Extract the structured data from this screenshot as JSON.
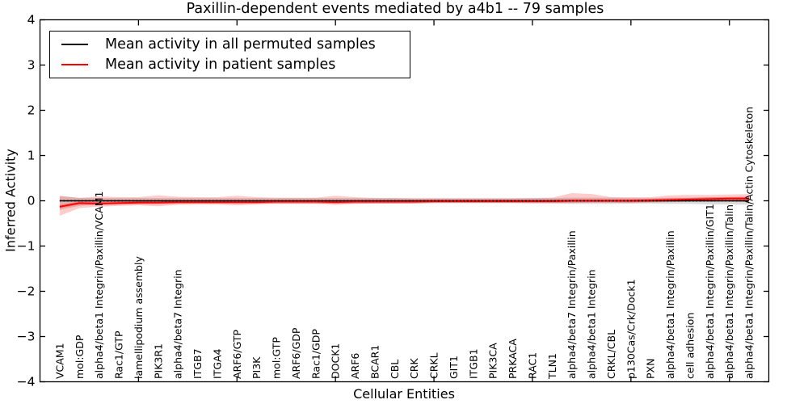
{
  "figure": {
    "title": "Paxillin-dependent events mediated by a4b1 -- 79 samples",
    "xlabel": "Cellular Entities",
    "ylabel": "Inferred Activity"
  },
  "legend": {
    "items": [
      {
        "label": "Mean activity in all permuted samples",
        "color": "#000000"
      },
      {
        "label": "Mean activity in patient samples",
        "color": "#ff0000"
      }
    ]
  },
  "colors": {
    "axis": "#000000",
    "permuted_line": "#000000",
    "patient_line": "#ff0000",
    "permuted_band": "rgba(0,0,0,0.14)",
    "patient_band_outer": "rgba(255,0,0,0.20)",
    "patient_band_inner": "rgba(255,0,0,0.28)"
  },
  "chart_data": {
    "type": "line",
    "title": "Paxillin-dependent events mediated by a4b1 -- 79 samples",
    "xlabel": "Cellular Entities",
    "ylabel": "Inferred Activity",
    "ylim": [
      -4,
      4
    ],
    "grid": false,
    "legend_position": "upper left",
    "y_tick_values": [
      4,
      3,
      2,
      1,
      0,
      -1,
      -2,
      -3,
      -4
    ],
    "y_tick_labels": [
      "4",
      "3",
      "2",
      "1",
      "0",
      "−1",
      "−2",
      "−3",
      "−4"
    ],
    "x_major_tick_positions": [
      5,
      10,
      15,
      20,
      25,
      30,
      35
    ],
    "categories": [
      "VCAM1",
      "mol:GDP",
      "alpha4/beta1 Integrin/Paxillin/VCAM1",
      "Rac1/GTP",
      "lamellipodium assembly",
      "PIK3R1",
      "alpha4/beta7 Integrin",
      "ITGB7",
      "ITGA4",
      "ARF6/GTP",
      "PI3K",
      "mol:GTP",
      "ARF6/GDP",
      "Rac1/GDP",
      "DOCK1",
      "ARF6",
      "BCAR1",
      "CBL",
      "CRK",
      "CRKL",
      "GIT1",
      "ITGB1",
      "PIK3CA",
      "PRKACA",
      "RAC1",
      "TLN1",
      "alpha4/beta7 Integrin/Paxillin",
      "alpha4/beta1 Integrin",
      "CRKL/CBL",
      "p130Cas/Crk/Dock1",
      "PXN",
      "alpha4/beta1 Integrin/Paxillin",
      "cell adhesion",
      "alpha4/beta1 Integrin/Paxillin/GIT1",
      "alpha4/beta1 Integrin/Paxillin/Talin",
      "alpha4/beta1 Integrin/Paxillin/Talin/Actin Cytoskeleton"
    ],
    "series": [
      {
        "name": "Mean activity in all permuted samples",
        "color": "#000000",
        "values": [
          0,
          0,
          0,
          0,
          0,
          0,
          0,
          0,
          0,
          0,
          0,
          0,
          0,
          0,
          0,
          0,
          0,
          0,
          0,
          0,
          0,
          0,
          0,
          0,
          0,
          0,
          0,
          0,
          0,
          0,
          0,
          0,
          0,
          0,
          0,
          0
        ]
      },
      {
        "name": "Mean activity in patient samples",
        "color": "#ff0000",
        "values": [
          -0.13,
          -0.05,
          -0.06,
          -0.05,
          -0.04,
          -0.04,
          -0.03,
          -0.03,
          -0.03,
          -0.03,
          -0.03,
          -0.02,
          -0.02,
          -0.02,
          -0.03,
          -0.02,
          -0.02,
          -0.02,
          -0.02,
          -0.01,
          -0.01,
          -0.01,
          -0.01,
          -0.01,
          -0.01,
          -0.01,
          0,
          0,
          0,
          0,
          0.01,
          0.02,
          0.03,
          0.04,
          0.05,
          0.05
        ]
      }
    ],
    "bands": [
      {
        "name": "permuted-band",
        "color": "rgba(0,0,0,0.14)",
        "upper": [
          0.1,
          0.07,
          0.06,
          0.06,
          0.06,
          0.06,
          0.06,
          0.06,
          0.06,
          0.06,
          0.06,
          0.06,
          0.06,
          0.06,
          0.06,
          0.06,
          0.06,
          0.06,
          0.05,
          0.05,
          0.05,
          0.05,
          0.05,
          0.05,
          0.06,
          0.06,
          0.07,
          0.07,
          0.07,
          0.06,
          0.06,
          0.07,
          0.07,
          0.08,
          0.08,
          0.09
        ],
        "lower": [
          -0.2,
          -0.11,
          -0.08,
          -0.07,
          -0.07,
          -0.07,
          -0.06,
          -0.06,
          -0.06,
          -0.06,
          -0.06,
          -0.06,
          -0.06,
          -0.06,
          -0.06,
          -0.06,
          -0.06,
          -0.06,
          -0.05,
          -0.05,
          -0.05,
          -0.05,
          -0.05,
          -0.05,
          -0.06,
          -0.06,
          -0.07,
          -0.07,
          -0.07,
          -0.06,
          -0.06,
          -0.07,
          -0.07,
          -0.08,
          -0.08,
          -0.09
        ]
      },
      {
        "name": "patient-band-outer",
        "color": "rgba(255,0,0,0.20)",
        "upper": [
          0.11,
          0.06,
          0.1,
          0.08,
          0.08,
          0.12,
          0.09,
          0.08,
          0.08,
          0.11,
          0.08,
          0.07,
          0.07,
          0.07,
          0.11,
          0.08,
          0.06,
          0.06,
          0.06,
          0.06,
          0.06,
          0.06,
          0.06,
          0.06,
          0.06,
          0.07,
          0.17,
          0.15,
          0.08,
          0.08,
          0.08,
          0.12,
          0.13,
          0.13,
          0.14,
          0.15
        ],
        "lower": [
          -0.33,
          -0.16,
          -0.13,
          -0.11,
          -0.1,
          -0.12,
          -0.09,
          -0.08,
          -0.08,
          -0.1,
          -0.08,
          -0.07,
          -0.07,
          -0.07,
          -0.09,
          -0.07,
          -0.06,
          -0.06,
          -0.06,
          -0.05,
          -0.05,
          -0.05,
          -0.05,
          -0.05,
          -0.05,
          -0.05,
          -0.05,
          -0.04,
          -0.04,
          -0.05,
          -0.04,
          -0.03,
          -0.02,
          -0.02,
          -0.02,
          -0.03
        ]
      },
      {
        "name": "patient-band-inner",
        "color": "rgba(255,0,0,0.28)",
        "upper": [
          -0.095,
          -0.015,
          -0.025,
          -0.015,
          -0.005,
          -0.005,
          0.005,
          0.005,
          0.005,
          0.005,
          0.005,
          0.015,
          0.015,
          0.015,
          0.005,
          0.015,
          0.015,
          0.015,
          0.015,
          0.025,
          0.025,
          0.025,
          0.025,
          0.025,
          0.025,
          0.025,
          0.035,
          0.035,
          0.035,
          0.035,
          0.045,
          0.055,
          0.065,
          0.075,
          0.085,
          0.085
        ],
        "lower": [
          -0.165,
          -0.085,
          -0.095,
          -0.085,
          -0.075,
          -0.075,
          -0.065,
          -0.065,
          -0.065,
          -0.065,
          -0.065,
          -0.055,
          -0.055,
          -0.055,
          -0.065,
          -0.055,
          -0.055,
          -0.055,
          -0.055,
          -0.045,
          -0.045,
          -0.045,
          -0.045,
          -0.045,
          -0.045,
          -0.045,
          -0.035,
          -0.035,
          -0.035,
          -0.035,
          -0.025,
          -0.015,
          -0.005,
          0.005,
          0.015,
          0.015
        ]
      }
    ]
  }
}
